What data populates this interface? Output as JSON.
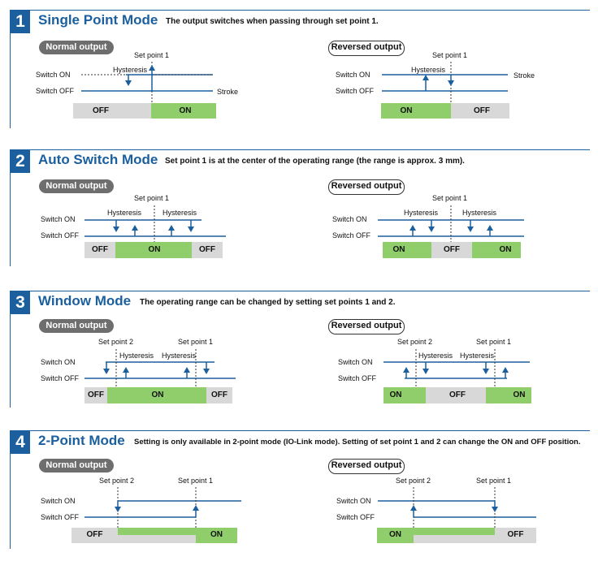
{
  "colors": {
    "accent": "#1b5f9e",
    "on_bar": "#8fce6b",
    "off_bar": "#d8d8d8",
    "line": "#1b5f9e"
  },
  "labels": {
    "normal_output": "Normal output",
    "reversed_output": "Reversed output",
    "set_point_1": "Set point 1",
    "set_point_2": "Set point 2",
    "hysteresis": "Hysteresis",
    "switch_on": "Switch ON",
    "switch_off": "Switch OFF",
    "stroke": "Stroke",
    "on": "ON",
    "off": "OFF"
  },
  "sections": [
    {
      "number": "1",
      "title": "Single Point Mode",
      "description": "The output switches when passing through set point 1."
    },
    {
      "number": "2",
      "title": "Auto Switch Mode",
      "description": "Set point 1 is at the center of the operating range (the range is approx. 3 mm)."
    },
    {
      "number": "3",
      "title": "Window Mode",
      "description": "The operating range can be changed by setting set points 1 and 2."
    },
    {
      "number": "4",
      "title": "2-Point Mode",
      "description": "Setting is only available in 2-point mode (IO-Link mode). Setting of set point 1 and 2 can change the ON and OFF position."
    }
  ]
}
